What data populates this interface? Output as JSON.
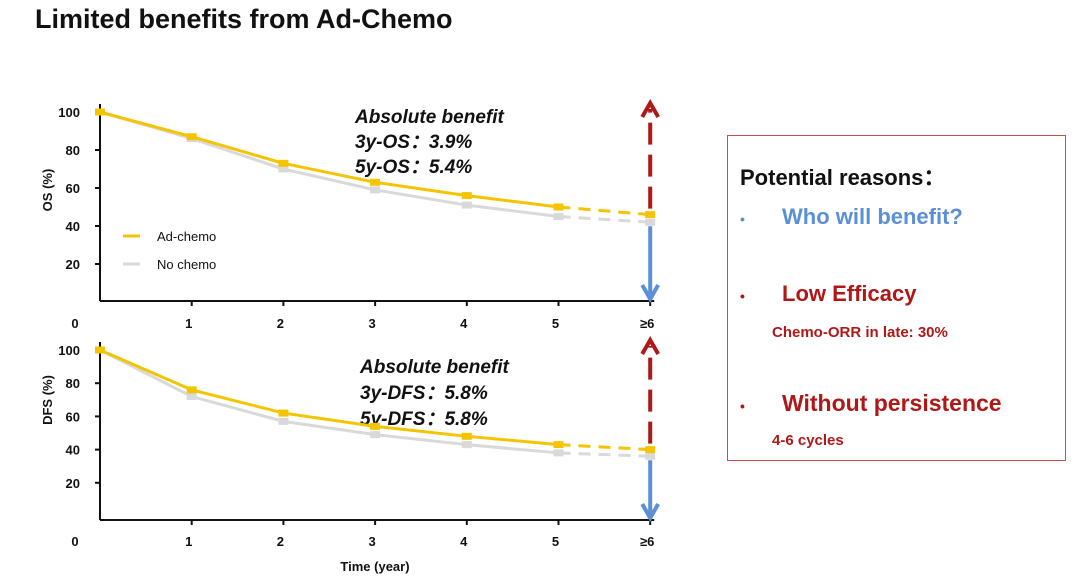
{
  "title": "Limited benefits from Ad-Chemo",
  "colors": {
    "ad_chemo": "#f5c400",
    "no_chemo": "#d9d9d9",
    "up_arrow": "#b01818",
    "down_arrow": "#5b8fd6",
    "box_border": "#c0504d",
    "blue_text": "#5b8fd6",
    "red_text": "#b01818"
  },
  "chart_data": [
    {
      "type": "line",
      "ylabel": "OS (%)",
      "xlabel": "",
      "categories": [
        "0",
        "1",
        "2",
        "3",
        "4",
        "5",
        "≥6"
      ],
      "yticks": [
        "20",
        "40",
        "60",
        "80",
        "100"
      ],
      "ylim": [
        0,
        100
      ],
      "series": [
        {
          "name": "Ad-chemo",
          "values": [
            100,
            87,
            73,
            63,
            56,
            50,
            46
          ]
        },
        {
          "name": "No chemo",
          "values": [
            100,
            86,
            70,
            59,
            51,
            45,
            42
          ]
        }
      ],
      "legend": [
        "Ad-chemo",
        "No chemo"
      ],
      "legend_position": "bottom-left",
      "annotation": [
        "Absolute benefit",
        "3y-OS：3.9%",
        "5y-OS：5.4%"
      ]
    },
    {
      "type": "line",
      "ylabel": "DFS (%)",
      "xlabel": "Time (year)",
      "categories": [
        "0",
        "1",
        "2",
        "3",
        "4",
        "5",
        "≥6"
      ],
      "yticks": [
        "20",
        "40",
        "60",
        "80",
        "100"
      ],
      "ylim": [
        0,
        100
      ],
      "series": [
        {
          "name": "Ad-chemo",
          "values": [
            100,
            76,
            62,
            54,
            48,
            43,
            40
          ]
        },
        {
          "name": "No chemo",
          "values": [
            100,
            72,
            57,
            49,
            43,
            38,
            36
          ]
        }
      ],
      "annotation": [
        "Absolute benefit",
        "3y-DFS：5.8%",
        "5y-DFS：5.8%"
      ]
    }
  ],
  "reasons": {
    "heading": "Potential reasons：",
    "bullet": "•",
    "items": [
      {
        "label": "Who will benefit?",
        "sub": ""
      },
      {
        "label": "Low Efficacy",
        "sub": "Chemo-ORR in late: 30%"
      },
      {
        "label": "Without persistence",
        "sub": "4-6 cycles"
      }
    ]
  }
}
